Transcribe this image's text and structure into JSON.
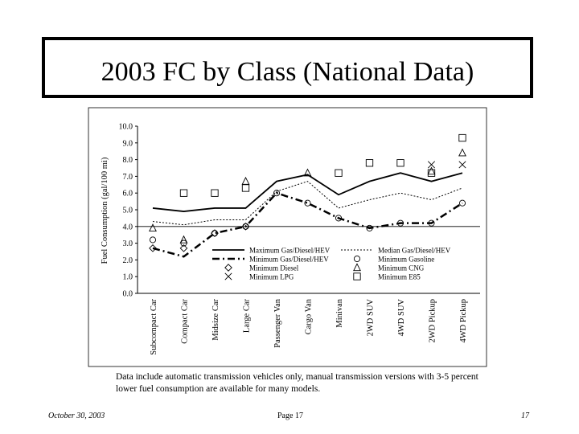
{
  "slide": {
    "title": "2003 FC by Class (National Data)",
    "footnote": "Data include automatic transmission vehicles only, manual transmission versions with 3-5 percent lower fuel consumption are available for many models.",
    "footer_date": "October 30, 2003",
    "footer_page": "Page 17",
    "footer_number": "17"
  },
  "chart_data": {
    "type": "line",
    "title": "",
    "xlabel": "",
    "ylabel": "Fuel Consumption (gal/100 mi)",
    "ylim": [
      0,
      10
    ],
    "yticks": [
      "0.0",
      "1.0",
      "2.0",
      "3.0",
      "4.0",
      "5.0",
      "6.0",
      "7.0",
      "8.0",
      "9.0",
      "10.0"
    ],
    "reference_line_y": 4.0,
    "categories": [
      "Subcompact Car",
      "Compact Car",
      "Midsize Car",
      "Large Car",
      "Passenger Van",
      "Cargo Van",
      "Minivan",
      "2WD SUV",
      "4WD SUV",
      "2WD Pickup",
      "4WD Pickup"
    ],
    "series": [
      {
        "name": "Maximum Gas/Diesel/HEV",
        "style": "solid",
        "values": [
          5.1,
          4.9,
          5.1,
          5.1,
          6.7,
          7.1,
          5.9,
          6.7,
          7.2,
          6.7,
          7.2
        ]
      },
      {
        "name": "Median Gas/Diesel/HEV",
        "style": "dotted",
        "values": [
          4.3,
          4.1,
          4.4,
          4.4,
          6.1,
          6.7,
          5.1,
          5.6,
          6.0,
          5.6,
          6.3
        ]
      },
      {
        "name": "Minimum Gas/Diesel/HEV",
        "style": "dashdot",
        "values": [
          2.7,
          2.2,
          3.6,
          4.0,
          6.0,
          5.4,
          4.5,
          3.9,
          4.2,
          4.2,
          5.4
        ]
      },
      {
        "name": "Minimum Gasoline",
        "marker": "circle",
        "values": [
          3.2,
          3.0,
          3.6,
          4.0,
          6.0,
          5.4,
          4.5,
          3.9,
          4.2,
          4.2,
          5.4
        ]
      },
      {
        "name": "Minimum Diesel",
        "marker": "diamond",
        "values": [
          2.7,
          2.7,
          3.6,
          4.0,
          null,
          null,
          null,
          null,
          null,
          null,
          null
        ]
      },
      {
        "name": "Minimum CNG",
        "marker": "triangle",
        "values": [
          3.9,
          3.2,
          null,
          6.7,
          null,
          7.2,
          null,
          null,
          null,
          7.3,
          8.4
        ]
      },
      {
        "name": "Minimum LPG",
        "marker": "x",
        "values": [
          null,
          null,
          null,
          null,
          null,
          null,
          null,
          null,
          null,
          7.7,
          7.7
        ]
      },
      {
        "name": "Minimum E85",
        "marker": "square",
        "values": [
          null,
          6.0,
          6.0,
          6.3,
          null,
          null,
          7.2,
          7.8,
          7.8,
          7.2,
          9.3
        ]
      }
    ],
    "legend": [
      [
        "Maximum Gas/Diesel/HEV",
        "Median Gas/Diesel/HEV"
      ],
      [
        "Minimum Gas/Diesel/HEV",
        "Minimum Gasoline"
      ],
      [
        "Minimum Diesel",
        "Minimum CNG"
      ],
      [
        "Minimum LPG",
        "Minimum E85"
      ]
    ],
    "legend_placement": "bottom-right inside plot"
  }
}
